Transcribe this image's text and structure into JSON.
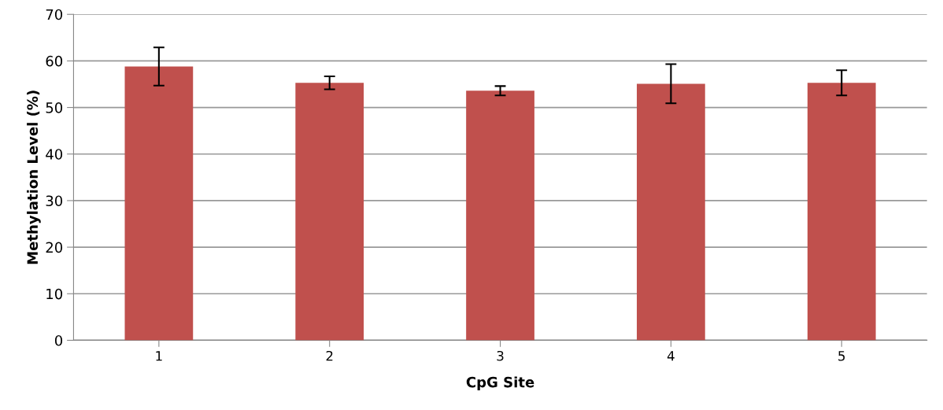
{
  "chart_data": {
    "type": "bar",
    "xlabel": "CpG Site",
    "ylabel": "Methylation Level (%)",
    "categories": [
      "1",
      "2",
      "3",
      "4",
      "5"
    ],
    "values": [
      58.8,
      55.3,
      53.6,
      55.1,
      55.3
    ],
    "errors": [
      4.1,
      1.4,
      1.0,
      4.2,
      2.7
    ],
    "color": "#c0504d",
    "ylim": [
      0,
      70
    ],
    "yticks": [
      0,
      10,
      20,
      30,
      40,
      50,
      60,
      70
    ],
    "grid": "y"
  }
}
